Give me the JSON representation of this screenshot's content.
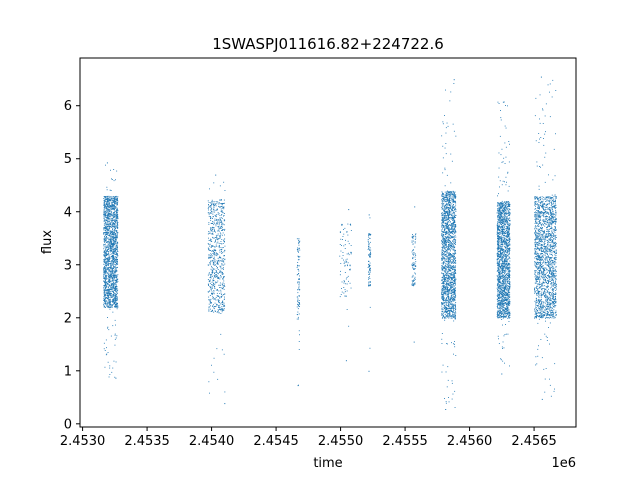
{
  "chart_data": {
    "type": "scatter",
    "title": "1SWASPJ011616.82+224722.6",
    "xlabel": "time",
    "ylabel": "flux",
    "x_offset_label": "1e6",
    "xlim": [
      2.45298,
      2.456825
    ],
    "ylim": [
      -0.06,
      6.9
    ],
    "x_ticks": [
      2.453,
      2.4535,
      2.454,
      2.4545,
      2.455,
      2.4555,
      2.456,
      2.4565
    ],
    "x_tick_labels": [
      "2.4530",
      "2.4535",
      "2.4540",
      "2.4545",
      "2.4550",
      "2.4555",
      "2.4560",
      "2.4565"
    ],
    "y_ticks": [
      0,
      1,
      2,
      3,
      4,
      5,
      6
    ],
    "y_tick_labels": [
      "0",
      "1",
      "2",
      "3",
      "4",
      "5",
      "6"
    ],
    "grid": false,
    "legend": "none",
    "marker_color": "#1f77b4",
    "clusters": [
      {
        "x_start": 2.45316,
        "x_end": 2.45327,
        "flux_low": 2.2,
        "flux_high": 4.3,
        "flux_min": 0.87,
        "flux_max": 4.93,
        "density": "high"
      },
      {
        "x_start": 2.45397,
        "x_end": 2.4541,
        "flux_low": 2.1,
        "flux_high": 4.25,
        "flux_min": 0.39,
        "flux_max": 4.7,
        "density": "medium"
      },
      {
        "x_start": 2.45466,
        "x_end": 2.45468,
        "flux_low": 1.9,
        "flux_high": 3.5,
        "flux_min": 0.73,
        "flux_max": 3.5,
        "density": "low"
      },
      {
        "x_start": 2.45499,
        "x_end": 2.45508,
        "flux_low": 2.4,
        "flux_high": 3.8,
        "flux_min": 1.2,
        "flux_max": 4.05,
        "density": "low"
      },
      {
        "x_start": 2.45521,
        "x_end": 2.45523,
        "flux_low": 2.6,
        "flux_high": 3.6,
        "flux_min": 1.0,
        "flux_max": 3.95,
        "density": "low"
      },
      {
        "x_start": 2.45555,
        "x_end": 2.45558,
        "flux_low": 2.6,
        "flux_high": 3.6,
        "flux_min": 1.55,
        "flux_max": 4.1,
        "density": "low"
      },
      {
        "x_start": 2.45578,
        "x_end": 2.45589,
        "flux_low": 2.0,
        "flux_high": 4.4,
        "flux_min": 0.28,
        "flux_max": 6.5,
        "density": "high"
      },
      {
        "x_start": 2.45621,
        "x_end": 2.45631,
        "flux_low": 2.0,
        "flux_high": 4.2,
        "flux_min": 0.95,
        "flux_max": 6.08,
        "density": "high"
      },
      {
        "x_start": 2.4565,
        "x_end": 2.45667,
        "flux_low": 2.0,
        "flux_high": 4.3,
        "flux_min": 0.47,
        "flux_max": 6.55,
        "density": "high"
      }
    ]
  }
}
